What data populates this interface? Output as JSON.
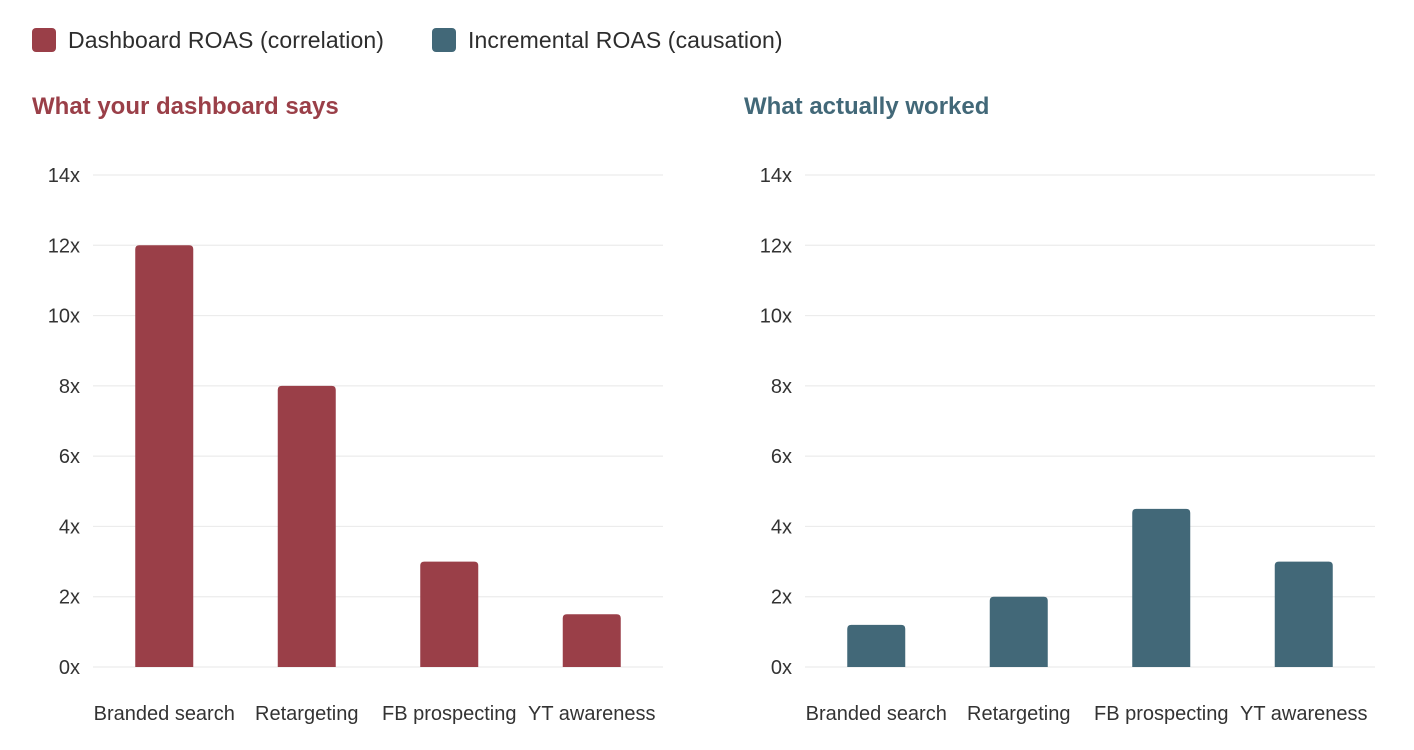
{
  "legend": [
    {
      "label": "Dashboard ROAS (correlation)",
      "color": "#9a3f48"
    },
    {
      "label": "Incremental ROAS (causation)",
      "color": "#426878"
    }
  ],
  "chart_data": [
    {
      "type": "bar",
      "title": "What your dashboard says",
      "color": "#9a3f48",
      "categories": [
        "Branded search",
        "Retargeting",
        "FB prospecting",
        "YT awareness"
      ],
      "series": [
        {
          "name": "Dashboard ROAS (correlation)",
          "values": [
            12,
            8,
            3,
            1.5
          ]
        }
      ],
      "yticks": [
        "0x",
        "2x",
        "4x",
        "6x",
        "8x",
        "10x",
        "12x",
        "14x"
      ],
      "ylim": [
        0,
        14
      ],
      "grid": true
    },
    {
      "type": "bar",
      "title": "What actually worked",
      "color": "#426878",
      "categories": [
        "Branded search",
        "Retargeting",
        "FB prospecting",
        "YT awareness"
      ],
      "series": [
        {
          "name": "Incremental ROAS (causation)",
          "values": [
            1.2,
            2,
            4.5,
            3
          ]
        }
      ],
      "yticks": [
        "0x",
        "2x",
        "4x",
        "6x",
        "8x",
        "10x",
        "12x",
        "14x"
      ],
      "ylim": [
        0,
        14
      ],
      "grid": true
    }
  ]
}
